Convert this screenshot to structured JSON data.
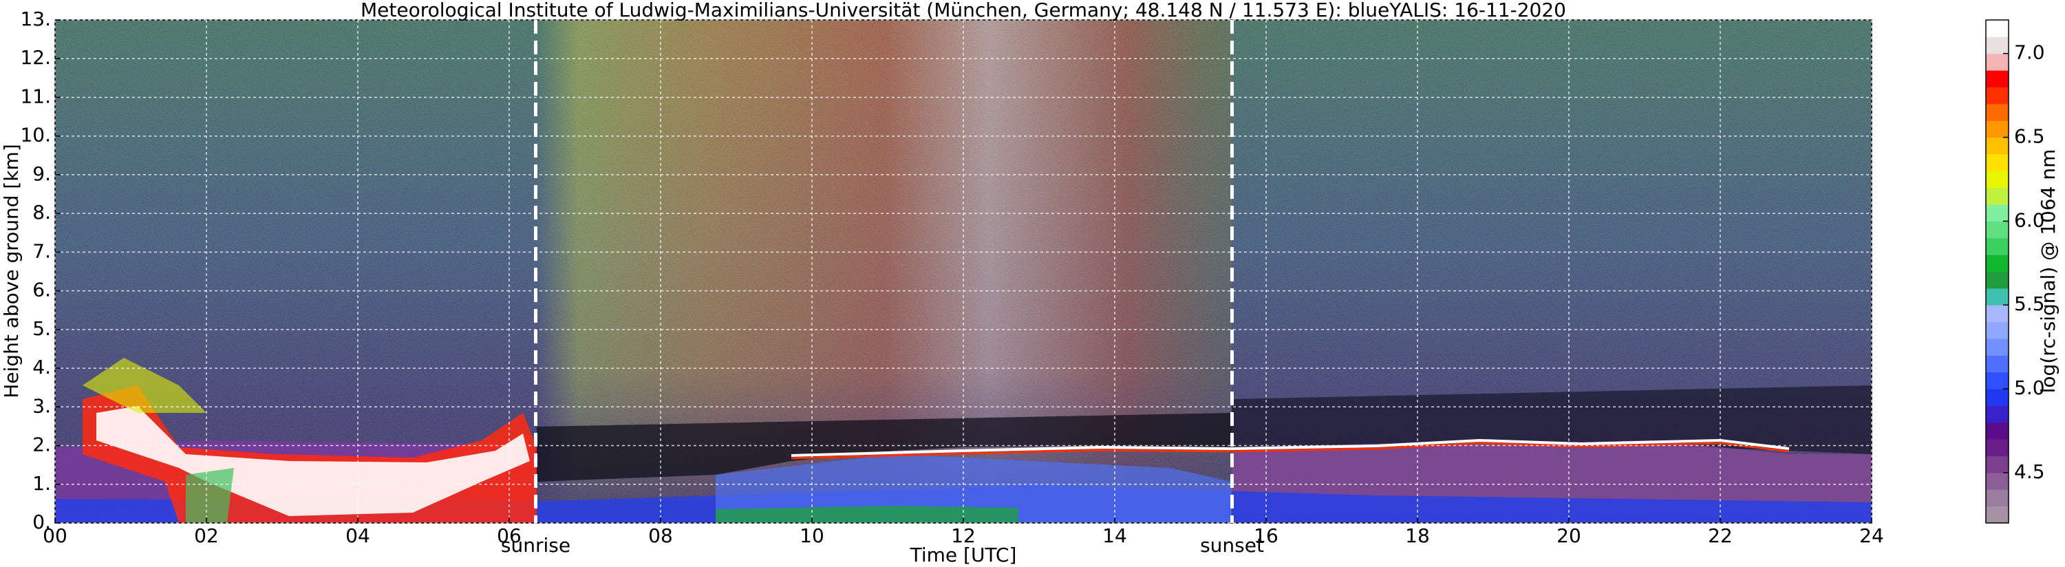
{
  "chart_data": {
    "type": "heatmap",
    "title": "Meteorological Institute of Ludwig-Maximilians-Universität (München, Germany; 48.148 N / 11.573 E):    blueYALIS: 16-11-2020",
    "x_label": "Time [UTC]",
    "y_label": "Height above ground [km]",
    "xlim": [
      0,
      24
    ],
    "xticks": [
      {
        "value": 0,
        "label": "00"
      },
      {
        "value": 2,
        "label": "02"
      },
      {
        "value": 4,
        "label": "04"
      },
      {
        "value": 6,
        "label": "06"
      },
      {
        "value": 8,
        "label": "08"
      },
      10,
      12,
      14,
      16,
      18,
      20,
      22,
      24
    ],
    "ylim": [
      0,
      13
    ],
    "yticks": [
      {
        "value": 0,
        "label": "0."
      },
      {
        "value": 1,
        "label": "1."
      },
      {
        "value": 2,
        "label": "2."
      },
      {
        "value": 3,
        "label": "3."
      },
      {
        "value": 4,
        "label": "4."
      },
      {
        "value": 5,
        "label": "5."
      },
      {
        "value": 6,
        "label": "6."
      },
      {
        "value": 7,
        "label": "7."
      },
      {
        "value": 8,
        "label": "8."
      },
      {
        "value": 9,
        "label": "9."
      },
      {
        "value": 10,
        "label": "10."
      },
      {
        "value": 11,
        "label": "11."
      },
      {
        "value": 12,
        "label": "12."
      },
      {
        "value": 13,
        "label": "13."
      }
    ],
    "grid": true,
    "annotations": [
      {
        "label": "sunrise",
        "x": 6.35
      },
      {
        "label": "sunset",
        "x": 15.55
      }
    ],
    "colorbar": {
      "label": "log(rc-signal) @ 1064 nm",
      "lim": [
        4.2,
        7.2
      ],
      "ticks": [
        4.5,
        {
          "value": 5,
          "label": "5.0"
        },
        5.5,
        {
          "value": 6,
          "label": "6.0"
        },
        6.5,
        {
          "value": 7,
          "label": "7.0"
        }
      ],
      "colors": [
        "#a592a5",
        "#9a7ca0",
        "#8c5f98",
        "#7c3e8e",
        "#6a1e8a",
        "#5a0c8c",
        "#3a20c8",
        "#2038f0",
        "#3050ff",
        "#5070ff",
        "#7090ff",
        "#90a8ff",
        "#a8b8ff",
        "#40c0b0",
        "#209c3c",
        "#10b830",
        "#3cd060",
        "#60e080",
        "#80f0a0",
        "#c0f040",
        "#e8f400",
        "#ffe000",
        "#ffc000",
        "#ff9800",
        "#ff6a00",
        "#ff3000",
        "#ff0000",
        "#f2b4b4",
        "#ebe0e0",
        "#ffffff"
      ]
    }
  }
}
